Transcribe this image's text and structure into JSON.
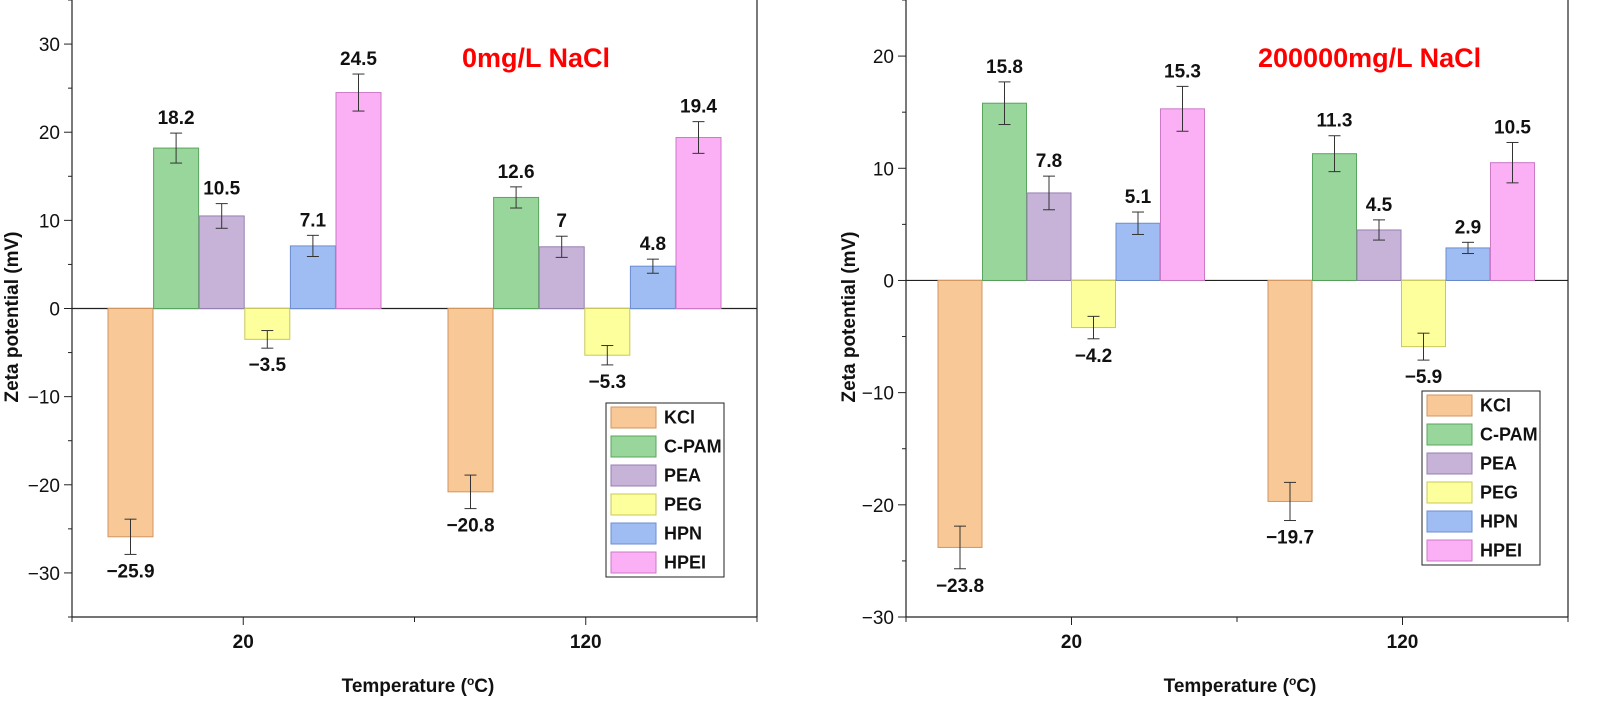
{
  "chart_data": [
    {
      "type": "bar",
      "title": "0mg/L NaCl",
      "xlabel": "Temperature (",
      "xlabel_sup": "o",
      "xlabel_unit": "C)",
      "ylabel": "Zeta potential (mV)",
      "ylim": [
        -35,
        35
      ],
      "yticks": [
        -30,
        -20,
        -10,
        0,
        10,
        20,
        30
      ],
      "ytick_labels": [
        "−30",
        "−20",
        "−10",
        "0",
        "10",
        "20",
        "30"
      ],
      "categories": [
        "20",
        "120"
      ],
      "series": [
        {
          "name": "KCl",
          "values": [
            -25.9,
            -20.8
          ],
          "errors": [
            2.0,
            1.9
          ],
          "labels": [
            "−25.9",
            "−20.8"
          ]
        },
        {
          "name": "C-PAM",
          "values": [
            18.2,
            12.6
          ],
          "errors": [
            1.7,
            1.2
          ],
          "labels": [
            "18.2",
            "12.6"
          ]
        },
        {
          "name": "PEA",
          "values": [
            10.5,
            7
          ],
          "errors": [
            1.4,
            1.2
          ],
          "labels": [
            "10.5",
            "7"
          ]
        },
        {
          "name": "PEG",
          "values": [
            -3.5,
            -5.3
          ],
          "errors": [
            1.0,
            1.1
          ],
          "labels": [
            "−3.5",
            "−5.3"
          ]
        },
        {
          "name": "HPN",
          "values": [
            7.1,
            4.8
          ],
          "errors": [
            1.2,
            0.8
          ],
          "labels": [
            "7.1",
            "4.8"
          ]
        },
        {
          "name": "HPEI",
          "values": [
            24.5,
            19.4
          ],
          "errors": [
            2.1,
            1.8
          ],
          "labels": [
            "24.5",
            "19.4"
          ]
        }
      ]
    },
    {
      "type": "bar",
      "title": "200000mg/L NaCl",
      "xlabel": "Temperature (",
      "xlabel_sup": "o",
      "xlabel_unit": "C)",
      "ylabel": "Zeta potential (mV)",
      "ylim": [
        -30,
        25
      ],
      "yticks": [
        -30,
        -20,
        -10,
        0,
        10,
        20
      ],
      "ytick_labels": [
        "−30",
        "−20",
        "−10",
        "0",
        "10",
        "20"
      ],
      "categories": [
        "20",
        "120"
      ],
      "series": [
        {
          "name": "KCl",
          "values": [
            -23.8,
            -19.7
          ],
          "errors": [
            1.9,
            1.7
          ],
          "labels": [
            "−23.8",
            "−19.7"
          ]
        },
        {
          "name": "C-PAM",
          "values": [
            15.8,
            11.3
          ],
          "errors": [
            1.9,
            1.6
          ],
          "labels": [
            "15.8",
            "11.3"
          ]
        },
        {
          "name": "PEA",
          "values": [
            7.8,
            4.5
          ],
          "errors": [
            1.5,
            0.9
          ],
          "labels": [
            "7.8",
            "4.5"
          ]
        },
        {
          "name": "PEG",
          "values": [
            -4.2,
            -5.9
          ],
          "errors": [
            1.0,
            1.2
          ],
          "labels": [
            "−4.2",
            "−5.9"
          ]
        },
        {
          "name": "HPN",
          "values": [
            5.1,
            2.9
          ],
          "errors": [
            1.0,
            0.5
          ],
          "labels": [
            "5.1",
            "2.9"
          ]
        },
        {
          "name": "HPEI",
          "values": [
            15.3,
            10.5
          ],
          "errors": [
            2.0,
            1.8
          ],
          "labels": [
            "15.3",
            "10.5"
          ]
        }
      ]
    }
  ],
  "colors": {
    "KCl": "#f9c897",
    "C-PAM": "#99d69b",
    "PEA": "#c7b3d8",
    "PEG": "#fdfe9c",
    "HPN": "#9fbdf2",
    "HPEI": "#fbb0f6"
  },
  "stroke_colors": {
    "KCl": "#d09660",
    "C-PAM": "#5aa55d",
    "PEA": "#957fb0",
    "PEG": "#c9c85d",
    "HPN": "#6b8ed0",
    "HPEI": "#cc79c6"
  }
}
